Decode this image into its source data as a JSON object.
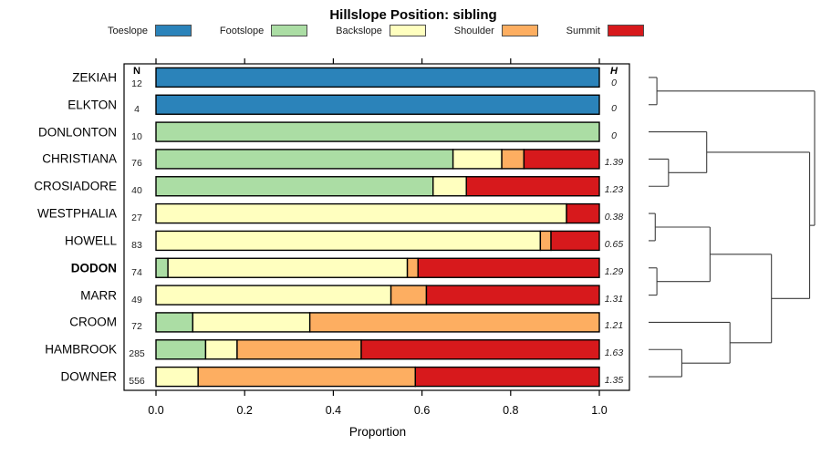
{
  "chart_data": {
    "type": "bar",
    "stacked": true,
    "orientation": "horizontal",
    "title": "Hillslope Position: sibling",
    "xlabel": "Proportion",
    "xlim": [
      0,
      1
    ],
    "x_ticks": [
      "0.0",
      "0.2",
      "0.4",
      "0.6",
      "0.8",
      "1.0"
    ],
    "x_tick_values": [
      0.0,
      0.2,
      0.4,
      0.6,
      0.8,
      1.0
    ],
    "n_column_header": "N",
    "h_column_header": "H",
    "categories": [
      "Toeslope",
      "Footslope",
      "Backslope",
      "Shoulder",
      "Summit"
    ],
    "colors": [
      "#2B83BA",
      "#ABDDA4",
      "#FFFFBF",
      "#FDAE61",
      "#D7191C"
    ],
    "rows": [
      {
        "name": "ZEKIAH",
        "n": "12",
        "h": "0",
        "bold": false,
        "values": [
          1,
          0,
          0,
          0,
          0
        ]
      },
      {
        "name": "ELKTON",
        "n": "4",
        "h": "0",
        "bold": false,
        "values": [
          1,
          0,
          0,
          0,
          0
        ]
      },
      {
        "name": "DONLONTON",
        "n": "10",
        "h": "0",
        "bold": false,
        "values": [
          0,
          1,
          0,
          0,
          0
        ]
      },
      {
        "name": "CHRISTIANA",
        "n": "76",
        "h": "1.39",
        "bold": false,
        "values": [
          0,
          0.67,
          0.11,
          0.05,
          0.17
        ]
      },
      {
        "name": "CROSIADORE",
        "n": "40",
        "h": "1.23",
        "bold": false,
        "values": [
          0,
          0.625,
          0.075,
          0,
          0.3
        ]
      },
      {
        "name": "WESTPHALIA",
        "n": "27",
        "h": "0.38",
        "bold": false,
        "values": [
          0,
          0,
          0.926,
          0,
          0.074
        ]
      },
      {
        "name": "HOWELL",
        "n": "83",
        "h": "0.65",
        "bold": false,
        "values": [
          0,
          0,
          0.867,
          0.024,
          0.109
        ]
      },
      {
        "name": "DODON",
        "n": "74",
        "h": "1.29",
        "bold": true,
        "values": [
          0,
          0.027,
          0.54,
          0.024,
          0.409
        ]
      },
      {
        "name": "MARR",
        "n": "49",
        "h": "1.31",
        "bold": false,
        "values": [
          0,
          0,
          0.53,
          0.08,
          0.39
        ]
      },
      {
        "name": "CROOM",
        "n": "72",
        "h": "1.21",
        "bold": false,
        "values": [
          0,
          0.083,
          0.264,
          0.653,
          0
        ]
      },
      {
        "name": "HAMBROOK",
        "n": "285",
        "h": "1.63",
        "bold": false,
        "values": [
          0,
          0.112,
          0.071,
          0.28,
          0.537
        ]
      },
      {
        "name": "DOWNER",
        "n": "556",
        "h": "1.35",
        "bold": false,
        "values": [
          0,
          0,
          0.095,
          0.49,
          0.415
        ]
      }
    ],
    "dendrogram": {
      "leaves": [
        "ZEKIAH",
        "ELKTON",
        "DONLONTON",
        "CHRISTIANA",
        "CROSIADORE",
        "WESTPHALIA",
        "HOWELL",
        "DODON",
        "MARR",
        "CROOM",
        "HAMBROOK",
        "DOWNER"
      ],
      "merges": [
        {
          "id": "m1",
          "children": [
            "L0",
            "L1"
          ],
          "height": 0.05
        },
        {
          "id": "m2",
          "children": [
            "L3",
            "L4"
          ],
          "height": 0.12
        },
        {
          "id": "m3",
          "children": [
            "L2",
            "m2"
          ],
          "height": 0.35
        },
        {
          "id": "m4",
          "children": [
            "L5",
            "L6"
          ],
          "height": 0.04
        },
        {
          "id": "m5",
          "children": [
            "L7",
            "L8"
          ],
          "height": 0.05
        },
        {
          "id": "m6",
          "children": [
            "m4",
            "m5"
          ],
          "height": 0.37
        },
        {
          "id": "m7",
          "children": [
            "L10",
            "L11"
          ],
          "height": 0.2
        },
        {
          "id": "m8",
          "children": [
            "L9",
            "m7"
          ],
          "height": 0.49
        },
        {
          "id": "m9",
          "children": [
            "m6",
            "m8"
          ],
          "height": 0.74
        },
        {
          "id": "m10",
          "children": [
            "m3",
            "m9"
          ],
          "height": 0.97
        },
        {
          "id": "root",
          "children": [
            "m1",
            "m10"
          ],
          "height": 1.0
        }
      ]
    }
  }
}
